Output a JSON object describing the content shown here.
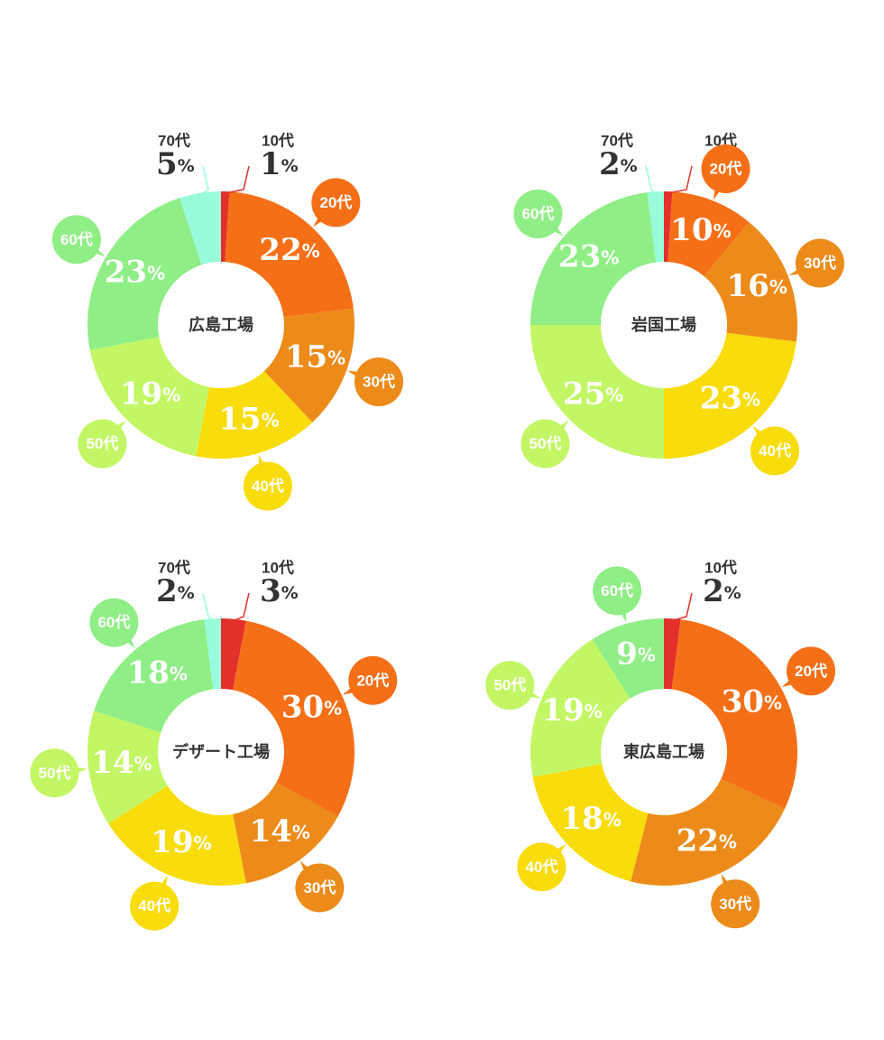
{
  "chart_data": [
    {
      "type": "donut",
      "title": "広島工場",
      "categories": [
        "10代",
        "20代",
        "30代",
        "40代",
        "50代",
        "60代",
        "70代"
      ],
      "values": [
        1,
        22,
        15,
        15,
        19,
        23,
        5
      ],
      "unit": "%"
    },
    {
      "type": "donut",
      "title": "岩国工場",
      "categories": [
        "10代",
        "20代",
        "30代",
        "40代",
        "50代",
        "60代",
        "70代"
      ],
      "values": [
        1,
        10,
        16,
        23,
        25,
        23,
        2
      ],
      "unit": "%"
    },
    {
      "type": "donut",
      "title": "デザート工場",
      "categories": [
        "10代",
        "20代",
        "30代",
        "40代",
        "50代",
        "60代",
        "70代"
      ],
      "values": [
        3,
        30,
        14,
        19,
        14,
        18,
        2
      ],
      "unit": "%"
    },
    {
      "type": "donut",
      "title": "東広島工場",
      "categories": [
        "10代",
        "20代",
        "30代",
        "40代",
        "50代",
        "60代"
      ],
      "values": [
        2,
        30,
        22,
        18,
        19,
        9
      ],
      "unit": "%"
    }
  ],
  "colors": {
    "10代": "#e3302a",
    "20代": "#f56f17",
    "30代": "#ec8b1a",
    "40代": "#f8dc0c",
    "50代": "#c3f665",
    "60代": "#8fee85",
    "70代": "#98fbdc"
  },
  "outside_categories": [
    "10代",
    "70代"
  ]
}
